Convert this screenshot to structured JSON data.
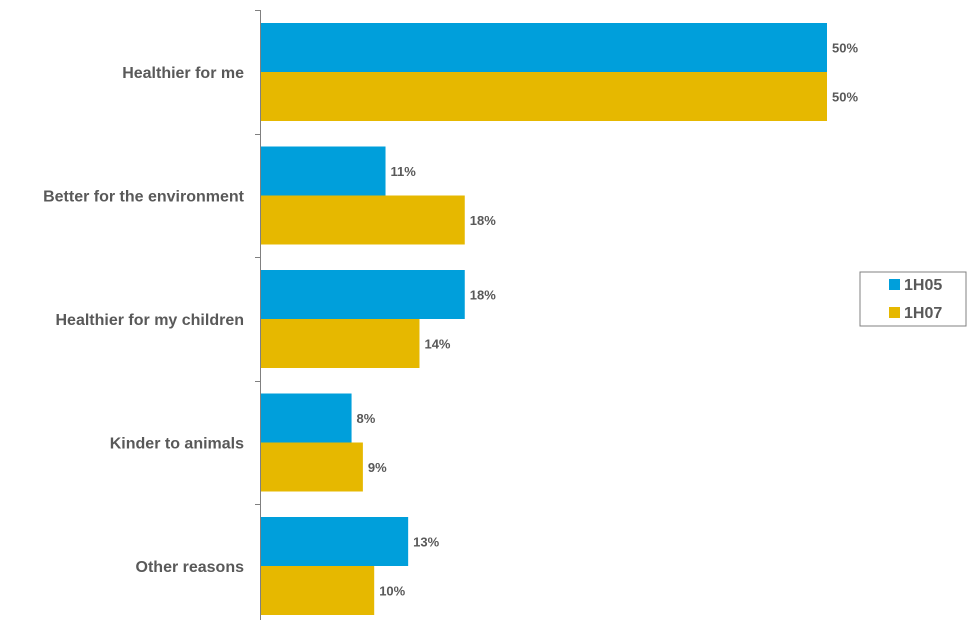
{
  "chart_data": {
    "type": "bar",
    "orientation": "horizontal",
    "categories": [
      "Healthier for me",
      "Better for the environment",
      "Healthier for my children",
      "Kinder to animals",
      "Other reasons"
    ],
    "series": [
      {
        "name": "1H05",
        "values": [
          50,
          11,
          18,
          8,
          13
        ],
        "labels": [
          "50%",
          "11%",
          "18%",
          "8%",
          "13%"
        ],
        "color": "#009fdb"
      },
      {
        "name": "1H07",
        "values": [
          50,
          18,
          14,
          9,
          10
        ],
        "labels": [
          "50%",
          "18%",
          "14%",
          "9%",
          "10%"
        ],
        "color": "#e6b800"
      }
    ],
    "xlim": [
      0,
      50
    ],
    "grid": false,
    "legend_position": "right"
  }
}
